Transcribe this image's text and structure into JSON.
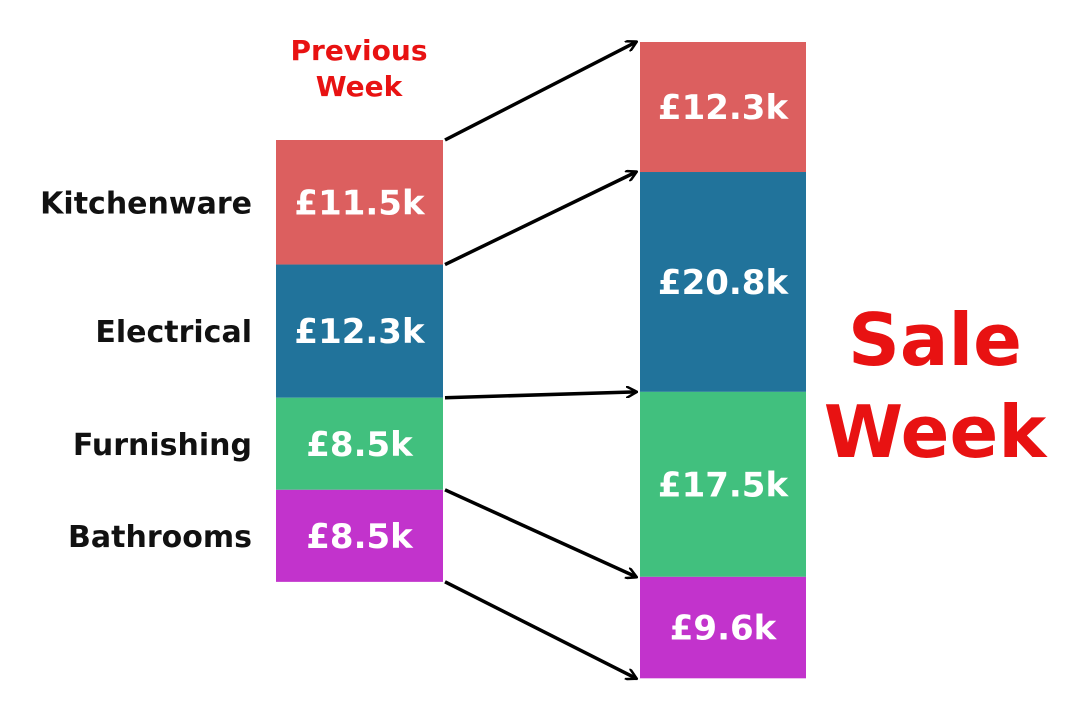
{
  "chart_data": {
    "type": "stacked-bar-comparison",
    "titles": {
      "previous": [
        "Previous",
        "Week"
      ],
      "sale": [
        "Sale",
        "Week"
      ]
    },
    "categories": [
      "Kitchenware",
      "Electrical",
      "Furnishing",
      "Bathrooms"
    ],
    "series": [
      {
        "name": "Previous Week",
        "values": [
          11.5,
          12.3,
          8.5,
          8.5
        ],
        "labels": [
          "£11.5k",
          "£12.3k",
          "£8.5k",
          "£8.5k"
        ]
      },
      {
        "name": "Sale Week",
        "values": [
          12.3,
          20.8,
          17.5,
          9.6
        ],
        "labels": [
          "£12.3k",
          "£20.8k",
          "£17.5k",
          "£9.6k"
        ]
      }
    ],
    "colors": {
      "Kitchenware": "#dc5f5f",
      "Electrical": "#21739b",
      "Furnishing": "#41c07e",
      "Bathrooms": "#c233cc",
      "title": "#e81212",
      "arrow": "#000000"
    },
    "legend": "none",
    "grid": false
  }
}
